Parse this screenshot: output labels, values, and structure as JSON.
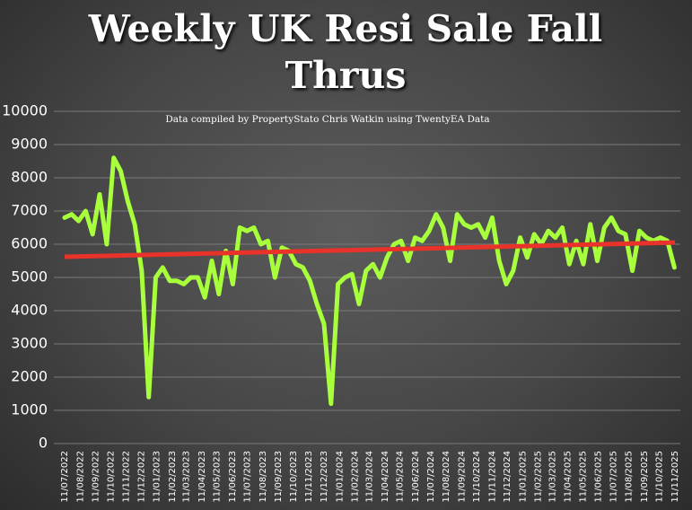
{
  "chart_data": {
    "type": "line",
    "title": "Weekly UK Resi Sale Fall Thrus",
    "subtitle": "Data compiled by PropertyStato Chris Watkin using TwentyEA Data",
    "x": [
      "11/07/2022",
      "25/07/2022",
      "08/08/2022",
      "22/08/2022",
      "05/09/2022",
      "19/09/2022",
      "03/10/2022",
      "17/10/2022",
      "31/10/2022",
      "14/11/2022",
      "28/11/2022",
      "12/12/2022",
      "26/12/2022",
      "09/01/2023",
      "23/01/2023",
      "06/02/2023",
      "20/02/2023",
      "06/03/2023",
      "20/03/2023",
      "03/04/2023",
      "17/04/2023",
      "01/05/2023",
      "15/05/2023",
      "29/05/2023",
      "12/06/2023",
      "26/06/2023",
      "10/07/2023",
      "24/07/2023",
      "07/08/2023",
      "21/08/2023",
      "04/09/2023",
      "18/09/2023",
      "02/10/2023",
      "16/10/2023",
      "30/10/2023",
      "13/11/2023",
      "27/11/2023",
      "11/12/2023",
      "25/12/2023",
      "08/01/2024",
      "22/01/2024",
      "05/02/2024",
      "19/02/2024",
      "04/03/2024",
      "18/03/2024",
      "01/04/2024",
      "15/04/2024",
      "29/04/2024",
      "13/05/2024",
      "27/05/2024",
      "10/06/2024",
      "24/06/2024",
      "08/07/2024",
      "22/07/2024",
      "05/08/2024",
      "19/08/2024",
      "02/09/2024",
      "16/09/2024",
      "30/09/2024",
      "14/10/2024",
      "28/10/2024",
      "11/11/2024",
      "25/11/2024",
      "09/12/2024",
      "23/12/2024",
      "06/01/2025",
      "20/01/2025",
      "03/02/2025",
      "17/02/2025",
      "03/03/2025",
      "17/03/2025",
      "31/03/2025",
      "14/04/2025",
      "28/04/2025",
      "12/05/2025",
      "26/05/2025",
      "09/06/2025",
      "23/06/2025",
      "07/07/2025",
      "21/07/2025",
      "04/08/2025",
      "18/08/2025",
      "01/09/2025",
      "15/09/2025",
      "29/09/2025",
      "13/10/2025",
      "27/10/2025",
      "10/11/2025"
    ],
    "series": [
      {
        "color": "#a8ff3c",
        "values": [
          6800,
          6900,
          6700,
          7000,
          6300,
          7500,
          6000,
          8600,
          8200,
          7300,
          6600,
          5200,
          1400,
          5000,
          5300,
          4900,
          4900,
          4800,
          5000,
          5000,
          4400,
          5500,
          4500,
          5800,
          4800,
          6500,
          6400,
          6500,
          6000,
          6100,
          5000,
          5900,
          5800,
          5400,
          5300,
          4900,
          4200,
          3600,
          1200,
          4800,
          5000,
          5100,
          4200,
          5200,
          5400,
          5000,
          5600,
          6000,
          6100,
          5500,
          6200,
          6100,
          6400,
          6900,
          6500,
          5500,
          6900,
          6600,
          6500,
          6600,
          6200,
          6800,
          5500,
          4800,
          5200,
          6200,
          5600,
          6300,
          6000,
          6400,
          6200,
          6500,
          5400,
          6100,
          5400,
          6600,
          5500,
          6500,
          6800,
          6400,
          6300,
          5200,
          6400,
          6200,
          6100,
          6200,
          6100,
          5300
        ]
      }
    ],
    "trend": {
      "color": "#e8322a",
      "values": [
        5620,
        6050
      ]
    },
    "xticks": [
      "11/07/2022",
      "11/08/2022",
      "11/09/2022",
      "11/10/2022",
      "11/11/2022",
      "11/12/2022",
      "11/01/2023",
      "11/02/2023",
      "11/03/2023",
      "11/04/2023",
      "11/05/2023",
      "11/06/2023",
      "11/07/2023",
      "11/08/2023",
      "11/09/2023",
      "11/10/2023",
      "11/11/2023",
      "11/12/2023",
      "11/01/2024",
      "11/02/2024",
      "11/03/2024",
      "11/04/2024",
      "11/05/2024",
      "11/06/2024",
      "11/07/2024",
      "11/08/2024",
      "11/09/2024",
      "11/10/2024",
      "11/11/2024",
      "11/12/2024",
      "11/01/2025",
      "11/02/2025",
      "11/03/2025",
      "11/04/2025",
      "11/05/2025",
      "11/06/2025",
      "11/07/2025",
      "11/08/2025",
      "11/09/2025",
      "11/10/2025",
      "11/11/2025"
    ],
    "ylim": [
      0,
      10000
    ],
    "yticks": [
      0,
      1000,
      2000,
      3000,
      4000,
      5000,
      6000,
      7000,
      8000,
      9000,
      10000
    ],
    "grid": true
  }
}
